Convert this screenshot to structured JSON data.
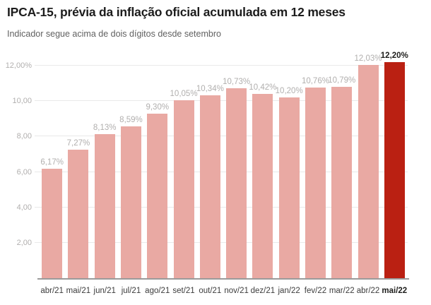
{
  "header": {
    "title": "IPCA-15, prévia da inflação oficial acumulada em 12 meses",
    "subtitle": "Indicador segue acima de dois dígitos desde setembro"
  },
  "chart_data": {
    "type": "bar",
    "title": "IPCA-15, prévia da inflação oficial acumulada em 12 meses",
    "subtitle": "Indicador segue acima de dois dígitos desde setembro",
    "categories": [
      "abr/21",
      "mai/21",
      "jun/21",
      "jul/21",
      "ago/21",
      "set/21",
      "out/21",
      "nov/21",
      "dez/21",
      "jan/22",
      "fev/22",
      "mar/22",
      "abr/22",
      "mai/22"
    ],
    "values": [
      6.17,
      7.27,
      8.13,
      8.59,
      9.3,
      10.05,
      10.34,
      10.73,
      10.42,
      10.2,
      10.76,
      10.79,
      12.03,
      12.2
    ],
    "value_labels": [
      "6,17%",
      "7,27%",
      "8,13%",
      "8,59%",
      "9,30%",
      "10,05%",
      "10,34%",
      "10,73%",
      "10,42%",
      "10,20%",
      "10,76%",
      "10,79%",
      "12,03%",
      "12,20%"
    ],
    "highlight_index": 13,
    "xlabel": "",
    "ylabel": "",
    "ylim": [
      0,
      12.52
    ],
    "yticks": [
      {
        "value": 2,
        "label": "2,00"
      },
      {
        "value": 4,
        "label": "4,00"
      },
      {
        "value": 6,
        "label": "6,00"
      },
      {
        "value": 8,
        "label": "8,00"
      },
      {
        "value": 10,
        "label": "10,00"
      },
      {
        "value": 12,
        "label": "12,00%"
      }
    ],
    "grid": true,
    "legend_position": "none",
    "colors": {
      "bar": "#e9a9a3",
      "bar_highlight": "#ba2012",
      "gridline": "#e9e9e9",
      "axis_line": "#9b9b9b",
      "value_label": "#b1afae",
      "value_label_highlight": "#1d1d1b",
      "y_tick_label": "#b1afae",
      "x_tick_label": "#3c3c3c",
      "x_tick_label_highlight": "#1d1d1b",
      "title": "#1c1c1c",
      "subtitle": "#616161"
    }
  }
}
